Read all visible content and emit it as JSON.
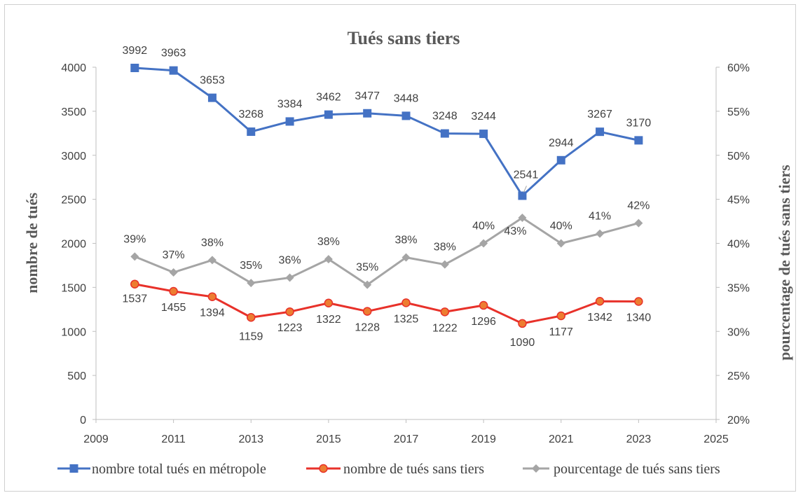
{
  "chart_data": {
    "type": "line",
    "title": "Tués sans tiers",
    "ylabel": "nombre de tués",
    "y2label": "pourcentage de tués sans tiers",
    "xlim": [
      2009,
      2025
    ],
    "ylim": [
      0,
      4000
    ],
    "y2lim": [
      0.2,
      0.6
    ],
    "x_ticks": [
      "2009",
      "2011",
      "2013",
      "2015",
      "2017",
      "2019",
      "2021",
      "2023",
      "2025"
    ],
    "y_ticks": [
      "0",
      "500",
      "1000",
      "1500",
      "2000",
      "2500",
      "3000",
      "3500",
      "4000"
    ],
    "y2_ticks": [
      "20%",
      "25%",
      "30%",
      "35%",
      "40%",
      "45%",
      "50%",
      "55%",
      "60%"
    ],
    "x": [
      2010,
      2011,
      2012,
      2013,
      2014,
      2015,
      2016,
      2017,
      2018,
      2019,
      2020,
      2021,
      2022,
      2023
    ],
    "legend_position": "bottom",
    "grid": false,
    "series": [
      {
        "name": "nombre total tués en métropole",
        "axis": "left",
        "color": "#4472c4",
        "marker": "square",
        "values": [
          3992,
          3963,
          3653,
          3268,
          3384,
          3462,
          3477,
          3448,
          3248,
          3244,
          2541,
          2944,
          3267,
          3170
        ],
        "labels": [
          "3992",
          "3963",
          "3653",
          "3268",
          "3384",
          "3462",
          "3477",
          "3448",
          "3248",
          "3244",
          "2541",
          "2944",
          "3267",
          "3170"
        ]
      },
      {
        "name": "nombre de tués sans tiers",
        "axis": "left",
        "color": "#e8312a",
        "marker": "circle",
        "values": [
          1537,
          1455,
          1394,
          1159,
          1223,
          1322,
          1228,
          1325,
          1222,
          1296,
          1090,
          1177,
          1342,
          1340
        ],
        "labels": [
          "1537",
          "1455",
          "1394",
          "1159",
          "1223",
          "1322",
          "1228",
          "1325",
          "1222",
          "1296",
          "1090",
          "1177",
          "1342",
          "1340"
        ]
      },
      {
        "name": "pourcentage de tués sans tiers",
        "axis": "right",
        "color": "#a5a5a5",
        "marker": "diamond",
        "values": [
          0.385,
          0.367,
          0.381,
          0.355,
          0.361,
          0.382,
          0.353,
          0.384,
          0.376,
          0.4,
          0.429,
          0.4,
          0.411,
          0.423
        ],
        "labels": [
          "39%",
          "37%",
          "38%",
          "35%",
          "36%",
          "38%",
          "35%",
          "38%",
          "38%",
          "40%",
          "43%",
          "40%",
          "41%",
          "42%"
        ]
      }
    ]
  }
}
